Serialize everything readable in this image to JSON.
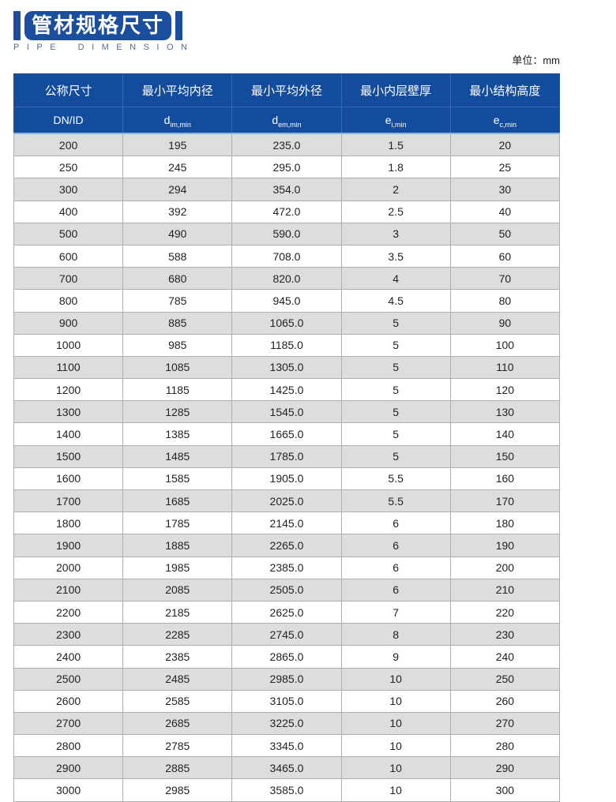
{
  "page": {
    "title_cn": "管材规格尺寸",
    "title_en": "PIPE DIMENSION",
    "unit_label": "单位：mm"
  },
  "colors": {
    "brand_blue_title": "#1b4f9e",
    "brand_blue_header": "#134c9d",
    "row_gray": "#dcdddd",
    "row_white": "#ffffff",
    "subtitle_text": "#5a6b8e"
  },
  "table": {
    "columns": [
      {
        "label": "公称尺寸",
        "sym": "DN/ID",
        "sub": ""
      },
      {
        "label": "最小平均内径",
        "sym": "d",
        "sub": "im,min"
      },
      {
        "label": "最小平均外径",
        "sym": "d",
        "sub": "em,min"
      },
      {
        "label": "最小内层壁厚",
        "sym": "e",
        "sub": "i,min"
      },
      {
        "label": "最小结构高度",
        "sym": "e",
        "sub": "c,min"
      }
    ],
    "rows": [
      [
        "200",
        "195",
        "235.0",
        "1.5",
        "20"
      ],
      [
        "250",
        "245",
        "295.0",
        "1.8",
        "25"
      ],
      [
        "300",
        "294",
        "354.0",
        "2",
        "30"
      ],
      [
        "400",
        "392",
        "472.0",
        "2.5",
        "40"
      ],
      [
        "500",
        "490",
        "590.0",
        "3",
        "50"
      ],
      [
        "600",
        "588",
        "708.0",
        "3.5",
        "60"
      ],
      [
        "700",
        "680",
        "820.0",
        "4",
        "70"
      ],
      [
        "800",
        "785",
        "945.0",
        "4.5",
        "80"
      ],
      [
        "900",
        "885",
        "1065.0",
        "5",
        "90"
      ],
      [
        "1000",
        "985",
        "1185.0",
        "5",
        "100"
      ],
      [
        "1100",
        "1085",
        "1305.0",
        "5",
        "110"
      ],
      [
        "1200",
        "1185",
        "1425.0",
        "5",
        "120"
      ],
      [
        "1300",
        "1285",
        "1545.0",
        "5",
        "130"
      ],
      [
        "1400",
        "1385",
        "1665.0",
        "5",
        "140"
      ],
      [
        "1500",
        "1485",
        "1785.0",
        "5",
        "150"
      ],
      [
        "1600",
        "1585",
        "1905.0",
        "5.5",
        "160"
      ],
      [
        "1700",
        "1685",
        "2025.0",
        "5.5",
        "170"
      ],
      [
        "1800",
        "1785",
        "2145.0",
        "6",
        "180"
      ],
      [
        "1900",
        "1885",
        "2265.0",
        "6",
        "190"
      ],
      [
        "2000",
        "1985",
        "2385.0",
        "6",
        "200"
      ],
      [
        "2100",
        "2085",
        "2505.0",
        "6",
        "210"
      ],
      [
        "2200",
        "2185",
        "2625.0",
        "7",
        "220"
      ],
      [
        "2300",
        "2285",
        "2745.0",
        "8",
        "230"
      ],
      [
        "2400",
        "2385",
        "2865.0",
        "9",
        "240"
      ],
      [
        "2500",
        "2485",
        "2985.0",
        "10",
        "250"
      ],
      [
        "2600",
        "2585",
        "3105.0",
        "10",
        "260"
      ],
      [
        "2700",
        "2685",
        "3225.0",
        "10",
        "270"
      ],
      [
        "2800",
        "2785",
        "3345.0",
        "10",
        "280"
      ],
      [
        "2900",
        "2885",
        "3465.0",
        "10",
        "290"
      ],
      [
        "3000",
        "2985",
        "3585.0",
        "10",
        "300"
      ]
    ]
  }
}
